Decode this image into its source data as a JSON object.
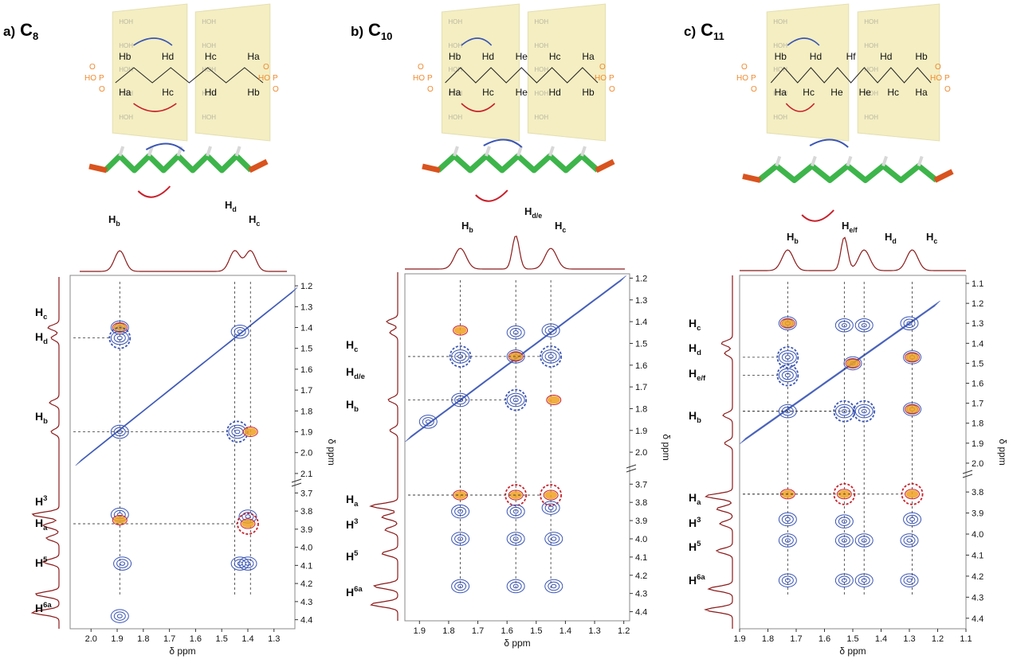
{
  "colors": {
    "blue": "#3a55b4",
    "red": "#c8202a",
    "orange": "#f0a020",
    "trace": "#8b1a1a",
    "phosphate": "#ee8a30",
    "cd": "#f3ecb8",
    "grey": "#555555"
  },
  "panels": [
    {
      "letter": "a)",
      "sub": "8",
      "dna": {
        "top": [
          "Hb",
          "Hd",
          "Hc",
          "Ha"
        ],
        "bottom": [
          "Ha",
          "Hc",
          "Hd",
          "Hb"
        ]
      },
      "xlabel": "δ ppm",
      "ylabel": "δ ppm",
      "xticks": [
        "2.0",
        "1.9",
        "1.8",
        "1.7",
        "1.6",
        "1.5",
        "1.4",
        "1.3"
      ],
      "yticks_top": [
        "1.2",
        "1.3",
        "1.4",
        "1.5",
        "1.6",
        "1.7",
        "1.8",
        "1.9",
        "2.0",
        "2.1"
      ],
      "yticks_bot": [
        "3.7",
        "3.8",
        "3.9",
        "4.0",
        "4.1",
        "4.2",
        "4.3",
        "4.4"
      ],
      "top_labels": [
        {
          "b": "H",
          "s": "b"
        },
        {
          "b": "H",
          "s": "d"
        },
        {
          "b": "H",
          "s": "c"
        }
      ],
      "left_labels": [
        {
          "b": "H",
          "s": "c"
        },
        {
          "b": "H",
          "s": "d"
        },
        {
          "b": "H",
          "s": "b"
        },
        {
          "b": "H",
          "s": "3",
          "sup": true
        },
        {
          "b": "H",
          "s": "a"
        },
        {
          "b": "H",
          "s": "5",
          "sup": true
        },
        {
          "b": "H",
          "s": "6a",
          "sup": true
        }
      ]
    },
    {
      "letter": "b)",
      "sub": "10",
      "dna": {
        "top": [
          "Hb",
          "Hd",
          "He",
          "Hc",
          "Ha"
        ],
        "bottom": [
          "Ha",
          "Hc",
          "He",
          "Hd",
          "Hb"
        ]
      },
      "xlabel": "δ ppm",
      "ylabel": "δ ppm",
      "xticks": [
        "1.9",
        "1.8",
        "1.7",
        "1.6",
        "1.5",
        "1.4",
        "1.3",
        "1.2"
      ],
      "yticks_top": [
        "1.2",
        "1.3",
        "1.4",
        "1.5",
        "1.6",
        "1.7",
        "1.8",
        "1.9",
        "2.0"
      ],
      "yticks_bot": [
        "3.7",
        "3.8",
        "3.9",
        "4.0",
        "4.1",
        "4.2",
        "4.3",
        "4.4"
      ],
      "top_labels": [
        {
          "b": "H",
          "s": "b"
        },
        {
          "b": "H",
          "s": "d/e"
        },
        {
          "b": "H",
          "s": "c"
        }
      ],
      "left_labels": [
        {
          "b": "H",
          "s": "c"
        },
        {
          "b": "H",
          "s": "d/e"
        },
        {
          "b": "H",
          "s": "b"
        },
        {
          "b": "H",
          "s": "a"
        },
        {
          "b": "H",
          "s": "3",
          "sup": true
        },
        {
          "b": "H",
          "s": "5",
          "sup": true
        },
        {
          "b": "H",
          "s": "6a",
          "sup": true
        }
      ]
    },
    {
      "letter": "c)",
      "sub": "11",
      "dna": {
        "top": [
          "Hb",
          "Hd",
          "Hf",
          "Hd",
          "Hb"
        ],
        "bottom": [
          "Ha",
          "Hc",
          "He",
          "He",
          "Hc",
          "Ha"
        ]
      },
      "xlabel": "δ ppm",
      "ylabel": "δ ppm",
      "xticks": [
        "1.9",
        "1.8",
        "1.7",
        "1.6",
        "1.5",
        "1.4",
        "1.3",
        "1.2",
        "1.1"
      ],
      "yticks_top": [
        "1.1",
        "1.2",
        "1.3",
        "1.4",
        "1.5",
        "1.6",
        "1.7",
        "1.8",
        "1.9",
        "2.0"
      ],
      "yticks_bot": [
        "3.8",
        "3.9",
        "4.0",
        "4.1",
        "4.2",
        "4.3",
        "4.4"
      ],
      "top_labels": [
        {
          "b": "H",
          "s": "b"
        },
        {
          "b": "H",
          "s": "e/f"
        },
        {
          "b": "H",
          "s": "d"
        },
        {
          "b": "H",
          "s": "c"
        }
      ],
      "left_labels": [
        {
          "b": "H",
          "s": "c"
        },
        {
          "b": "H",
          "s": "d"
        },
        {
          "b": "H",
          "s": "e/f"
        },
        {
          "b": "H",
          "s": "b"
        },
        {
          "b": "H",
          "s": "a"
        },
        {
          "b": "H",
          "s": "3",
          "sup": true
        },
        {
          "b": "H",
          "s": "5",
          "sup": true
        },
        {
          "b": "H",
          "s": "6a",
          "sup": true
        }
      ]
    }
  ],
  "chart_data": [
    {
      "type": "heatmap",
      "title": "a) C8",
      "xlabel": "δ ppm",
      "ylabel": "δ ppm",
      "xlim": [
        2.08,
        1.22
      ],
      "ylim_segments": [
        [
          1.15,
          2.15
        ],
        [
          3.65,
          4.45
        ]
      ],
      "axis_break": true,
      "x_guides": [
        1.89,
        1.45,
        1.39
      ],
      "cross_peaks": [
        {
          "x": 1.89,
          "y": 1.4,
          "color": "mixed"
        },
        {
          "x": 1.89,
          "y": 1.45,
          "color": "blue-circle"
        },
        {
          "x": 1.89,
          "y": 1.9,
          "color": "blue"
        },
        {
          "x": 1.43,
          "y": 1.42,
          "color": "blue"
        },
        {
          "x": 1.44,
          "y": 1.9,
          "color": "blue-circle"
        },
        {
          "x": 1.39,
          "y": 1.9,
          "color": "red"
        },
        {
          "x": 1.89,
          "y": 3.82,
          "color": "blue"
        },
        {
          "x": 1.89,
          "y": 3.85,
          "color": "red"
        },
        {
          "x": 1.4,
          "y": 3.83,
          "color": "blue"
        },
        {
          "x": 1.4,
          "y": 3.87,
          "color": "red-circle"
        },
        {
          "x": 1.88,
          "y": 4.09,
          "color": "blue"
        },
        {
          "x": 1.43,
          "y": 4.09,
          "color": "blue"
        },
        {
          "x": 1.4,
          "y": 4.09,
          "color": "blue"
        },
        {
          "x": 1.89,
          "y": 4.38,
          "color": "blue"
        }
      ]
    },
    {
      "type": "heatmap",
      "title": "b) C10",
      "xlabel": "δ ppm",
      "ylabel": "δ ppm",
      "xlim": [
        1.95,
        1.18
      ],
      "ylim_segments": [
        [
          1.18,
          2.08
        ],
        [
          3.62,
          4.45
        ]
      ],
      "axis_break": true,
      "x_guides": [
        1.76,
        1.57,
        1.45
      ],
      "cross_peaks": [
        {
          "x": 1.76,
          "y": 1.44,
          "color": "red"
        },
        {
          "x": 1.76,
          "y": 1.56,
          "color": "blue-circle"
        },
        {
          "x": 1.76,
          "y": 1.76,
          "color": "blue"
        },
        {
          "x": 1.57,
          "y": 1.45,
          "color": "blue"
        },
        {
          "x": 1.57,
          "y": 1.56,
          "color": "mixed"
        },
        {
          "x": 1.57,
          "y": 1.76,
          "color": "blue-circle"
        },
        {
          "x": 1.45,
          "y": 1.44,
          "color": "blue"
        },
        {
          "x": 1.45,
          "y": 1.56,
          "color": "blue-circle"
        },
        {
          "x": 1.44,
          "y": 1.76,
          "color": "red"
        },
        {
          "x": 1.87,
          "y": 1.86,
          "color": "blue"
        },
        {
          "x": 1.76,
          "y": 3.76,
          "color": "red"
        },
        {
          "x": 1.57,
          "y": 3.76,
          "color": "red-circle"
        },
        {
          "x": 1.45,
          "y": 3.76,
          "color": "red-circle"
        },
        {
          "x": 1.76,
          "y": 3.85,
          "color": "blue"
        },
        {
          "x": 1.57,
          "y": 3.85,
          "color": "blue"
        },
        {
          "x": 1.45,
          "y": 3.83,
          "color": "blue"
        },
        {
          "x": 1.76,
          "y": 4.0,
          "color": "blue"
        },
        {
          "x": 1.57,
          "y": 4.0,
          "color": "blue"
        },
        {
          "x": 1.44,
          "y": 4.0,
          "color": "blue"
        },
        {
          "x": 1.76,
          "y": 4.26,
          "color": "blue"
        },
        {
          "x": 1.57,
          "y": 4.26,
          "color": "blue"
        },
        {
          "x": 1.44,
          "y": 4.26,
          "color": "blue"
        }
      ]
    },
    {
      "type": "heatmap",
      "title": "c) C11",
      "xlabel": "δ ppm",
      "ylabel": "δ ppm",
      "xlim": [
        1.9,
        1.1
      ],
      "ylim_segments": [
        [
          1.06,
          2.06
        ],
        [
          3.72,
          4.45
        ]
      ],
      "axis_break": true,
      "x_guides": [
        1.73,
        1.53,
        1.46,
        1.29
      ],
      "cross_peaks": [
        {
          "x": 1.73,
          "y": 1.3,
          "color": "mixed"
        },
        {
          "x": 1.73,
          "y": 1.47,
          "color": "blue-circle"
        },
        {
          "x": 1.73,
          "y": 1.56,
          "color": "blue-circle"
        },
        {
          "x": 1.73,
          "y": 1.74,
          "color": "blue"
        },
        {
          "x": 1.53,
          "y": 1.31,
          "color": "blue"
        },
        {
          "x": 1.46,
          "y": 1.31,
          "color": "blue"
        },
        {
          "x": 1.3,
          "y": 1.3,
          "color": "blue"
        },
        {
          "x": 1.5,
          "y": 1.5,
          "color": "mixed"
        },
        {
          "x": 1.29,
          "y": 1.47,
          "color": "mixed"
        },
        {
          "x": 1.53,
          "y": 1.74,
          "color": "blue-circle"
        },
        {
          "x": 1.46,
          "y": 1.74,
          "color": "blue-circle"
        },
        {
          "x": 1.29,
          "y": 1.73,
          "color": "mixed"
        },
        {
          "x": 1.73,
          "y": 3.81,
          "color": "red"
        },
        {
          "x": 1.53,
          "y": 3.81,
          "color": "red-circle"
        },
        {
          "x": 1.29,
          "y": 3.81,
          "color": "red-circle"
        },
        {
          "x": 1.73,
          "y": 3.93,
          "color": "blue"
        },
        {
          "x": 1.53,
          "y": 3.94,
          "color": "blue"
        },
        {
          "x": 1.29,
          "y": 3.93,
          "color": "blue"
        },
        {
          "x": 1.73,
          "y": 4.03,
          "color": "blue"
        },
        {
          "x": 1.53,
          "y": 4.03,
          "color": "blue"
        },
        {
          "x": 1.46,
          "y": 4.03,
          "color": "blue"
        },
        {
          "x": 1.3,
          "y": 4.03,
          "color": "blue"
        },
        {
          "x": 1.73,
          "y": 4.22,
          "color": "blue"
        },
        {
          "x": 1.53,
          "y": 4.22,
          "color": "blue"
        },
        {
          "x": 1.46,
          "y": 4.22,
          "color": "blue"
        },
        {
          "x": 1.3,
          "y": 4.22,
          "color": "blue"
        }
      ]
    }
  ]
}
